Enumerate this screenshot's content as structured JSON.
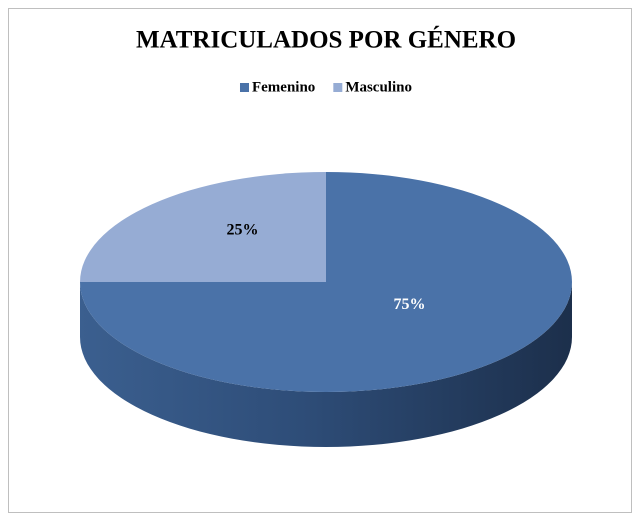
{
  "chart_data": {
    "type": "pie",
    "title": "MATRICULADOS POR GÉNERO",
    "categories": [
      "Femenino",
      "Masculino"
    ],
    "values": [
      75,
      25
    ],
    "value_labels": [
      "75%",
      "25%"
    ],
    "colors": [
      "#4a72a8",
      "#96acd4"
    ],
    "legend": "top"
  }
}
